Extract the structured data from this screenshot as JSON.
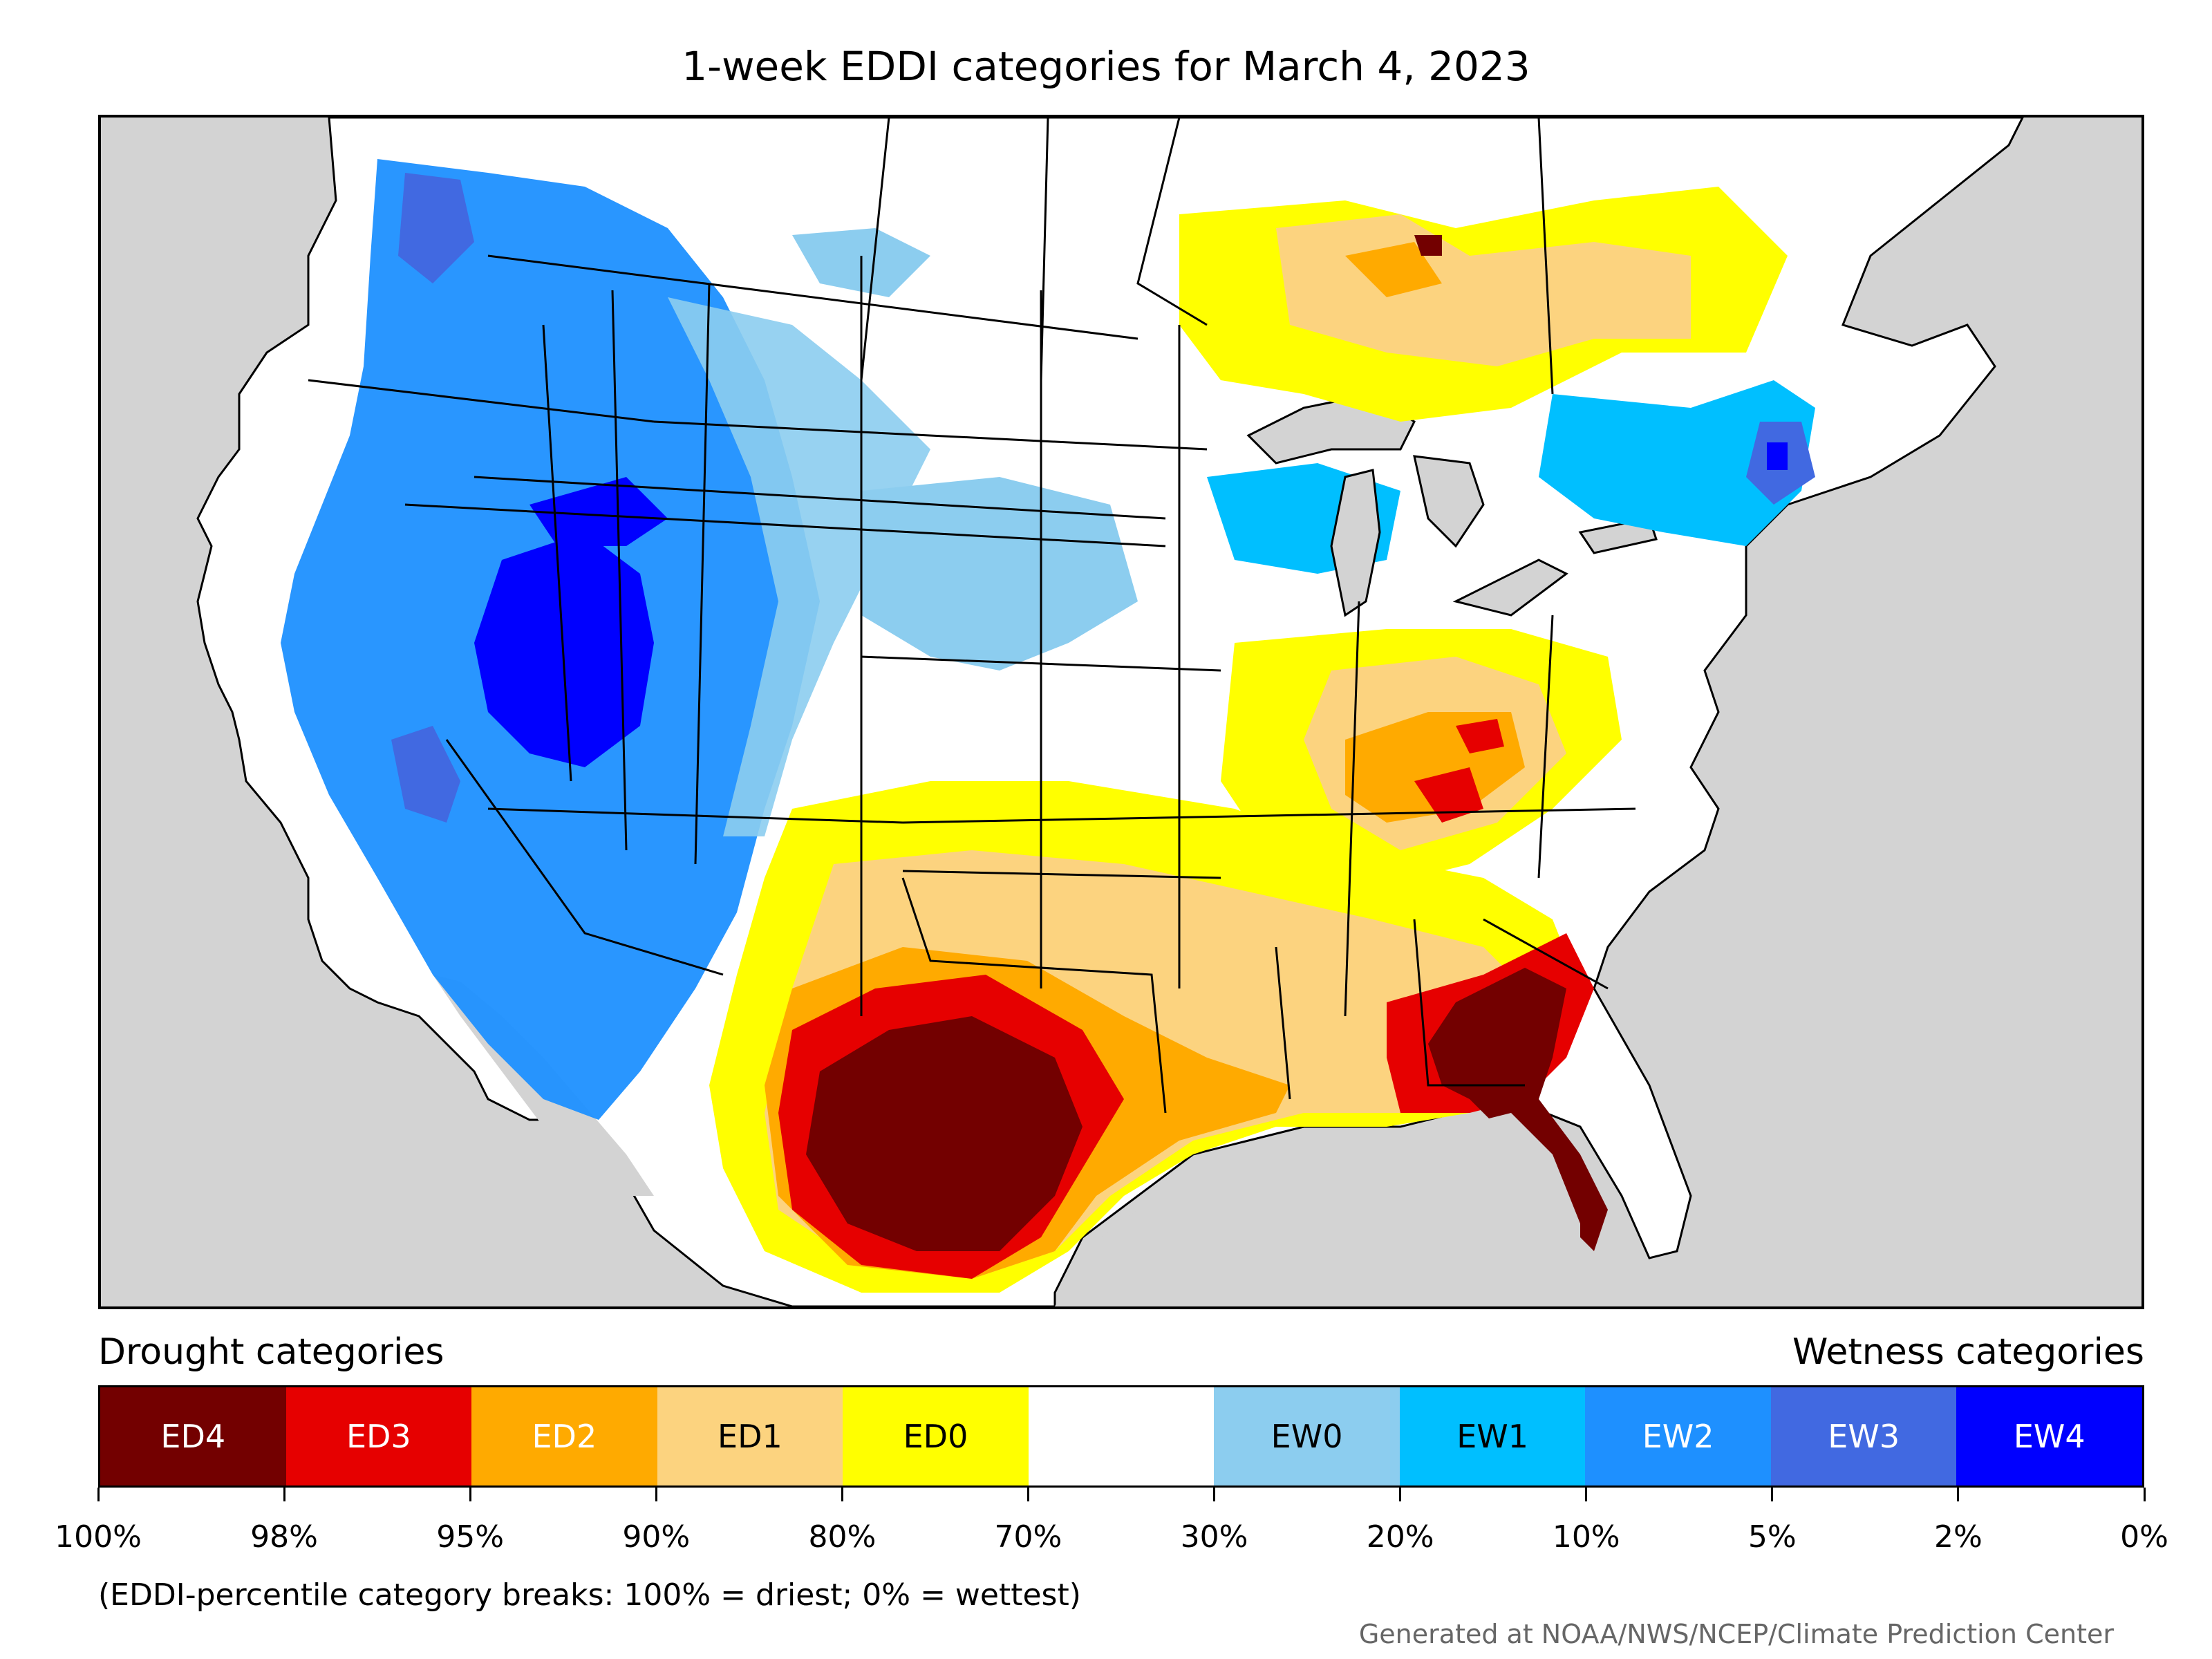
{
  "title": "1-week EDDI categories for March 4, 2023",
  "legend": {
    "drought_heading": "Drought categories",
    "wetness_heading": "Wetness categories",
    "categories": [
      {
        "label": "ED4",
        "color": "#730000",
        "text_color": "#ffffff"
      },
      {
        "label": "ED3",
        "color": "#e60000",
        "text_color": "#ffffff"
      },
      {
        "label": "ED2",
        "color": "#ffaa00",
        "text_color": "#ffffff"
      },
      {
        "label": "ED1",
        "color": "#fcd37f",
        "text_color": "#000000"
      },
      {
        "label": "ED0",
        "color": "#ffff00",
        "text_color": "#000000"
      },
      {
        "label": "",
        "color": "#ffffff",
        "text_color": "#000000"
      },
      {
        "label": "EW0",
        "color": "#8ccdef",
        "text_color": "#000000"
      },
      {
        "label": "EW1",
        "color": "#00bfff",
        "text_color": "#000000"
      },
      {
        "label": "EW2",
        "color": "#1e90ff",
        "text_color": "#ffffff"
      },
      {
        "label": "EW3",
        "color": "#4169e1",
        "text_color": "#ffffff"
      },
      {
        "label": "EW4",
        "color": "#0000ff",
        "text_color": "#ffffff"
      }
    ],
    "breaks": [
      "100%",
      "98%",
      "95%",
      "90%",
      "80%",
      "70%",
      "30%",
      "20%",
      "10%",
      "5%",
      "2%",
      "0%"
    ]
  },
  "footnote": "(EDDI-percentile category breaks: 100% = driest; 0% = wettest)",
  "credit": "Generated at NOAA/NWS/NCEP/Climate Prediction Center",
  "map": {
    "background_color": "#d3d3d3",
    "land_color": "#ffffff",
    "regions": [
      {
        "name": "pacific-northwest",
        "category": "EW2"
      },
      {
        "name": "great-basin",
        "category": "EW4"
      },
      {
        "name": "california",
        "category": "EW2"
      },
      {
        "name": "northern-rockies",
        "category": "EW1"
      },
      {
        "name": "upper-midwest",
        "category": "EW1"
      },
      {
        "name": "new-england",
        "category": "EW3"
      },
      {
        "name": "ontario-quebec",
        "category": "ED1"
      },
      {
        "name": "ohio-valley",
        "category": "ED2"
      },
      {
        "name": "kentucky",
        "category": "ED3"
      },
      {
        "name": "southern-plains",
        "category": "ED1"
      },
      {
        "name": "texas",
        "category": "ED4"
      },
      {
        "name": "georgia-florida",
        "category": "ED4"
      },
      {
        "name": "gulf-coast",
        "category": "ED2"
      }
    ]
  }
}
